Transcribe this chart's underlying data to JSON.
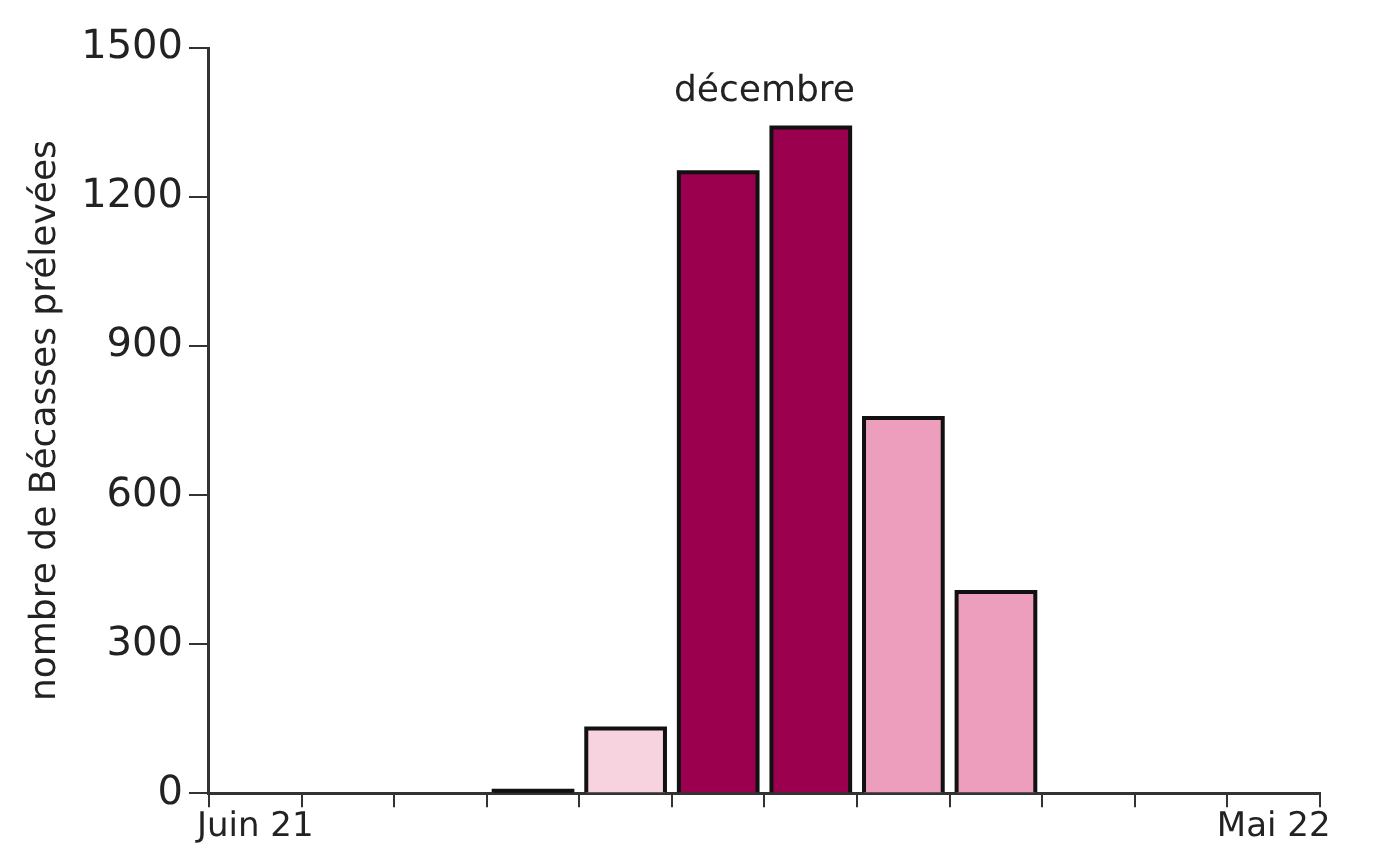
{
  "chart_data": {
    "type": "bar",
    "ylabel": "nombre de Bécasses prélevées",
    "categories": [
      "Juin 21",
      null,
      null,
      null,
      null,
      null,
      null,
      null,
      null,
      null,
      null,
      "Mai 22"
    ],
    "values": [
      null,
      null,
      null,
      5,
      130,
      1250,
      1340,
      755,
      405,
      null,
      null,
      null
    ],
    "colors": [
      "#f7d3e0",
      "#f7d3e0",
      "#f7d3e0",
      "#1a1a1a",
      "#f7d3e0",
      "#9b004f",
      "#9b004f",
      "#ed9ebd",
      "#ed9ebd",
      "#ed9ebd",
      "#ed9ebd",
      "#ed9ebd"
    ],
    "ylim": [
      0,
      1500
    ],
    "yticks": [
      0,
      300,
      600,
      900,
      1200,
      1500
    ],
    "grid": false,
    "legend": false,
    "annotations": [
      "décembre"
    ]
  }
}
